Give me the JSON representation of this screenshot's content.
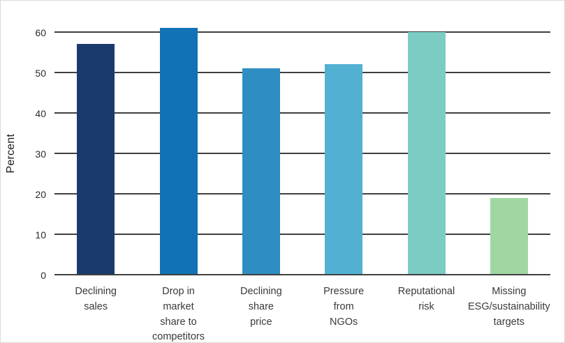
{
  "chart_data": {
    "type": "bar",
    "title": "",
    "xlabel": "",
    "ylabel": "Percent",
    "ylim": [
      0,
      60
    ],
    "yticks": [
      0,
      10,
      20,
      30,
      40,
      50,
      60
    ],
    "grid": true,
    "legend": "none",
    "categories": [
      "Declining sales",
      "Drop in market share to competitors",
      "Declining share price",
      "Pressure from NGOs",
      "Reputational risk",
      "Missing ESG/sustainability targets"
    ],
    "category_lines": [
      [
        "Declining",
        "sales"
      ],
      [
        "Drop in",
        "market",
        "share to",
        "competitors"
      ],
      [
        "Declining",
        "share",
        "price"
      ],
      [
        "Pressure",
        "from",
        "NGOs"
      ],
      [
        "Reputational",
        "risk"
      ],
      [
        "Missing",
        "ESG/sustainability",
        "targets"
      ]
    ],
    "values": [
      57,
      61,
      51,
      52,
      60,
      19
    ],
    "bar_colors": [
      "#1a3a6e",
      "#1173b5",
      "#2e8dc1",
      "#52b1d3",
      "#7cccc4",
      "#a0d7a1"
    ],
    "gridline_color": "#3f3f3f"
  }
}
